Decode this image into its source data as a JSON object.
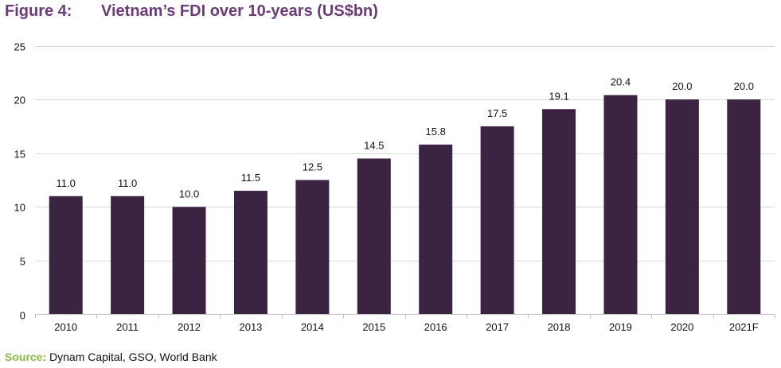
{
  "figure": {
    "number_label": "Figure 4:",
    "title": "Vietnam’s FDI over 10-years (US$bn)"
  },
  "source": {
    "label": "Source:",
    "text": " Dynam Capital, GSO, World Bank"
  },
  "colors": {
    "bar": "#3b2442",
    "title": "#6a3d78",
    "source_label": "#86bd45",
    "grid": "#d9d9d9",
    "axis": "#bfbfbf",
    "text": "#111111"
  },
  "chart_data": {
    "type": "bar",
    "title": "Vietnam’s FDI over 10-years (US$bn)",
    "xlabel": "",
    "ylabel": "",
    "categories": [
      "2010",
      "2011",
      "2012",
      "2013",
      "2014",
      "2015",
      "2016",
      "2017",
      "2018",
      "2019",
      "2020",
      "2021F"
    ],
    "values": [
      11.0,
      11.0,
      10.0,
      11.5,
      12.5,
      14.5,
      15.8,
      17.5,
      19.1,
      20.4,
      20.0,
      20.0
    ],
    "data_labels": [
      "11.0",
      "11.0",
      "10.0",
      "11.5",
      "12.5",
      "14.5",
      "15.8",
      "17.5",
      "19.1",
      "20.4",
      "20.0",
      "20.0"
    ],
    "ylim": [
      0,
      25
    ],
    "yticks": [
      0,
      5,
      10,
      15,
      20,
      25
    ],
    "grid": true,
    "legend": "none"
  }
}
